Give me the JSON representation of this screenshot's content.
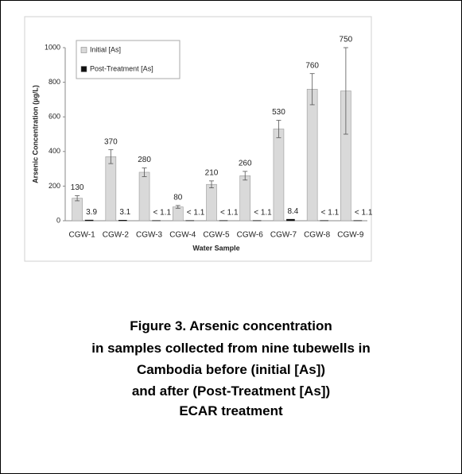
{
  "chart_data": {
    "type": "bar",
    "xlabel": "Water Sample",
    "ylabel": "Arsenic Concentration (µg/L)",
    "categories": [
      "CGW-1",
      "CGW-2",
      "CGW-3",
      "CGW-4",
      "CGW-5",
      "CGW-6",
      "CGW-7",
      "CGW-8",
      "CGW-9"
    ],
    "series": [
      {
        "name": "Initial [As]",
        "color": "#d9d9d9",
        "values": [
          130,
          370,
          280,
          80,
          210,
          260,
          530,
          760,
          750
        ],
        "errors": [
          15,
          40,
          25,
          8,
          20,
          25,
          50,
          90,
          250
        ]
      },
      {
        "name": "Post-Treatment [As]",
        "color": "#111111",
        "values": [
          3.9,
          3.1,
          1.1,
          1.1,
          1.1,
          1.1,
          8.4,
          1.1,
          1.1
        ],
        "value_labels": [
          "3.9",
          "3.1",
          "< 1.1",
          "< 1.1",
          "< 1.1",
          "< 1.1",
          "8.4",
          "< 1.1",
          "< 1.1"
        ]
      }
    ],
    "ylim": [
      0,
      1000
    ],
    "yticks": [
      0,
      200,
      400,
      600,
      800,
      1000
    ],
    "grid": false,
    "legend": "upper left"
  },
  "caption": [
    "Figure 3. Arsenic concentration",
    "in samples collected from nine tubewells in",
    "Cambodia before (initial [As])",
    "and after (Post-Treatment [As])",
    "ECAR treatment"
  ]
}
